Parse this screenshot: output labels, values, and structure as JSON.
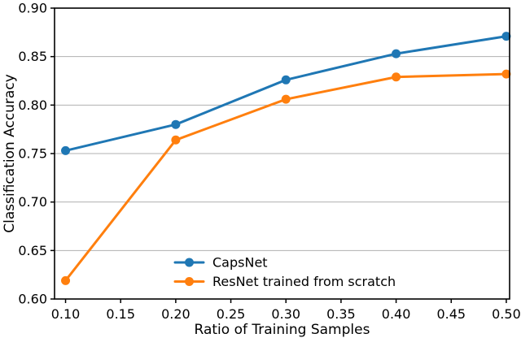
{
  "chart_data": {
    "type": "line",
    "title": "",
    "xlabel": "Ratio of Training Samples",
    "ylabel": "Classification Accuracy",
    "x": [
      0.1,
      0.2,
      0.3,
      0.4,
      0.5
    ],
    "series": [
      {
        "name": "CapsNet",
        "color": "#1f77b4",
        "values": [
          0.753,
          0.78,
          0.826,
          0.853,
          0.871
        ]
      },
      {
        "name": "ResNet trained from scratch",
        "color": "#ff7f0e",
        "values": [
          0.619,
          0.764,
          0.806,
          0.829,
          0.832
        ]
      }
    ],
    "xlim": [
      0.09,
      0.503
    ],
    "ylim": [
      0.6,
      0.9
    ],
    "xticks": [
      0.1,
      0.15,
      0.2,
      0.25,
      0.3,
      0.35,
      0.4,
      0.45,
      0.5
    ],
    "yticks": [
      0.6,
      0.65,
      0.7,
      0.75,
      0.8,
      0.85,
      0.9
    ],
    "tick_format": "0.00",
    "grid": "horizontal",
    "grid_color": "#b0b0b0",
    "axis_color": "#000000",
    "marker": "circle",
    "legend": {
      "position": "lower-center-inside",
      "frame": false,
      "entries": [
        "CapsNet",
        "ResNet trained from scratch"
      ]
    }
  }
}
